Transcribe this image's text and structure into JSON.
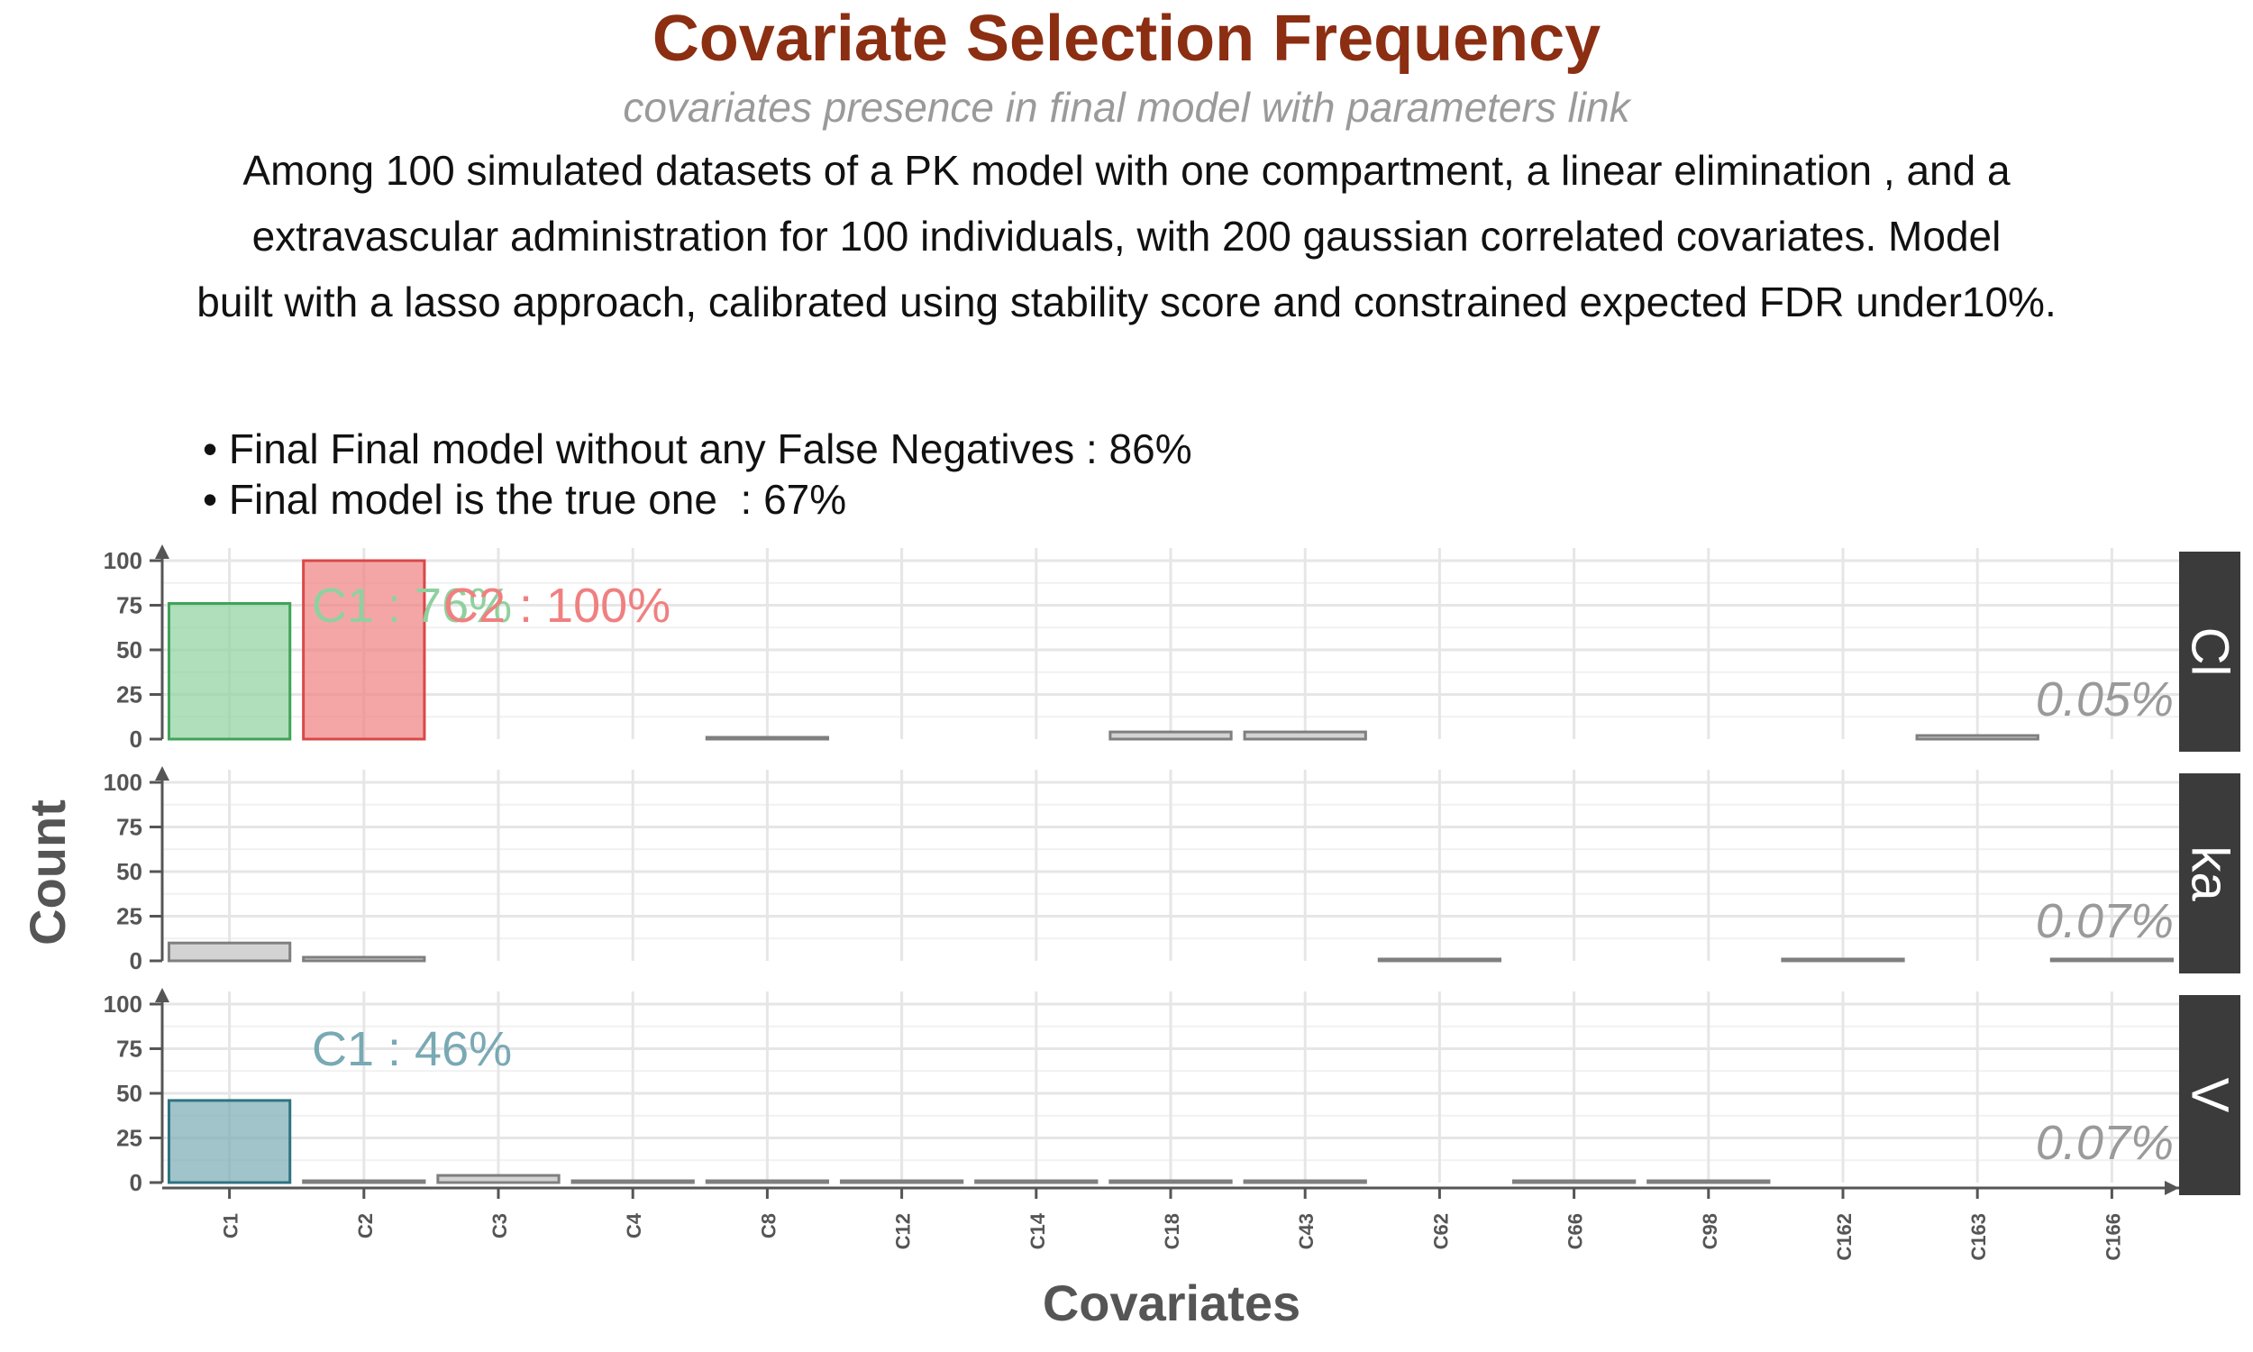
{
  "header": {
    "title": "Covariate Selection Frequency",
    "subtitle": "covariates presence in final model with parameters link",
    "caption_lines": [
      "Among 100 simulated datasets of a PK model with one compartment, a linear elimination , and a",
      "extravascular administration for 100 individuals, with 200 gaussian correlated covariates. Model",
      "built with a lasso approach, calibrated using stability score and constrained expected FDR under10%."
    ],
    "bullets": [
      "• Final Final model without any False Negatives : 86%",
      "• Final model is the true one  : 67%"
    ]
  },
  "colors": {
    "title": "#8B2E12",
    "cl_true": "#8FD19E",
    "cl_true_stroke": "#3FA357",
    "c2_true": "#F08080",
    "c2_true_stroke": "#D94848",
    "v_true": "#79A9B4",
    "v_true_stroke": "#2E7382",
    "false_fill": "#D3D3D3",
    "false_stroke": "#7f7f7f",
    "strip_bg": "#3B3B3B",
    "strip_text": "#FFFFFF",
    "fdr_text": "#9a9a9a"
  },
  "chart_data": {
    "type": "bar",
    "xlabel": "Covariates",
    "ylabel": "Count",
    "ylim": [
      0,
      100
    ],
    "yticks": [
      0,
      25,
      50,
      75,
      100
    ],
    "categories": [
      "C1",
      "C2",
      "C3",
      "C4",
      "C8",
      "C12",
      "C14",
      "C18",
      "C43",
      "C62",
      "C66",
      "C98",
      "C162",
      "C163",
      "C166"
    ],
    "panels": [
      {
        "strip": "Cl",
        "fdr_label": "0.05%",
        "values": [
          76,
          100,
          0,
          0,
          1,
          0,
          0,
          4,
          4,
          0,
          0,
          0,
          0,
          2,
          0
        ],
        "true_covariates": [
          "C1",
          "C2"
        ],
        "annotations": [
          {
            "text": "C1 : 76%",
            "color_key": "cl_true"
          },
          {
            "text": "C2 : 100%",
            "color_key": "c2_true"
          }
        ]
      },
      {
        "strip": "ka",
        "fdr_label": "0.07%",
        "values": [
          10,
          2,
          0,
          0,
          0,
          0,
          0,
          0,
          0,
          1,
          0,
          0,
          1,
          0,
          1
        ],
        "true_covariates": [],
        "annotations": []
      },
      {
        "strip": "V",
        "fdr_label": "0.07%",
        "values": [
          46,
          1,
          4,
          1,
          1,
          1,
          1,
          1,
          1,
          0,
          1,
          1,
          0,
          0,
          0
        ],
        "true_covariates": [
          "C1"
        ],
        "annotations": [
          {
            "text": "C1 : 46%",
            "color_key": "v_true"
          }
        ]
      }
    ]
  }
}
